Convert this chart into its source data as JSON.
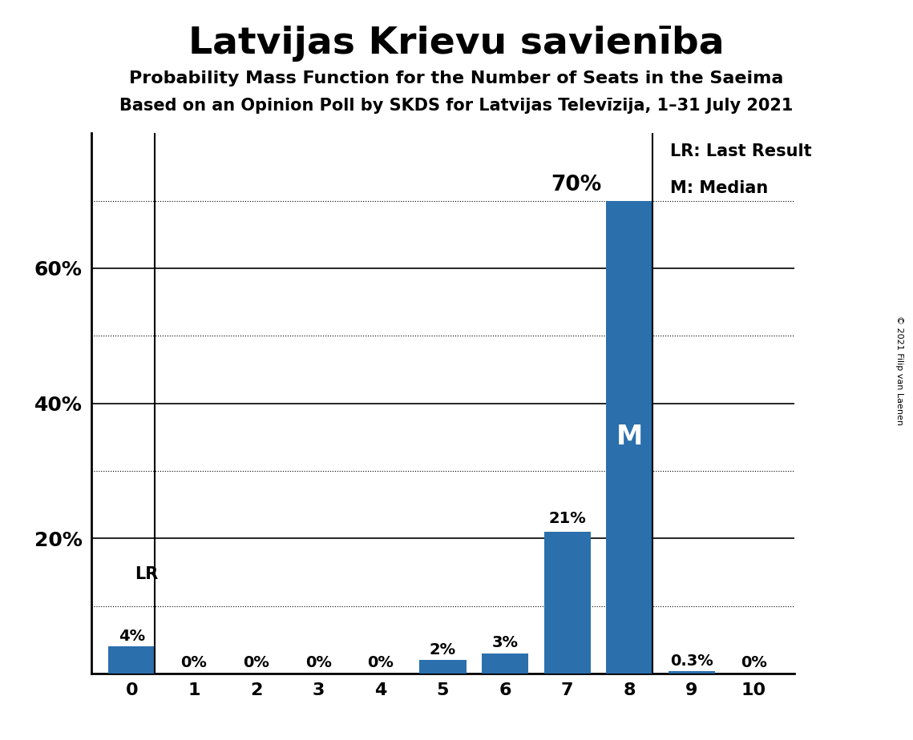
{
  "title": "Latvijas Krievu savienība",
  "subtitle1": "Probability Mass Function for the Number of Seats in the Saeima",
  "subtitle2": "Based on an Opinion Poll by SKDS for Latvijas Televīzija, 1–31 July 2021",
  "copyright": "© 2021 Filip van Laenen",
  "categories": [
    0,
    1,
    2,
    3,
    4,
    5,
    6,
    7,
    8,
    9,
    10
  ],
  "values": [
    4,
    0,
    0,
    0,
    0,
    2,
    3,
    21,
    70,
    0.3,
    0
  ],
  "bar_color": "#2b6fad",
  "bar_labels": [
    "4%",
    "0%",
    "0%",
    "0%",
    "0%",
    "2%",
    "3%",
    "21%",
    "70%",
    "0.3%",
    "0%"
  ],
  "last_result_seat": 0,
  "median_seat": 8,
  "ylim": [
    0,
    80
  ],
  "yticks_labeled": [
    20,
    40,
    60
  ],
  "yticks_solid": [
    20,
    40,
    60
  ],
  "yticks_dotted": [
    10,
    30,
    50,
    70
  ],
  "background_color": "#ffffff",
  "legend_lr": "LR: Last Result",
  "legend_m": "M: Median",
  "lr_label": "LR",
  "m_label": "M",
  "title_fontsize": 34,
  "subtitle1_fontsize": 16,
  "subtitle2_fontsize": 15,
  "bar_label_fontsize": 14,
  "axis_tick_fontsize": 16,
  "ytick_fontsize": 18,
  "legend_fontsize": 15,
  "m_inside_fontsize": 24
}
